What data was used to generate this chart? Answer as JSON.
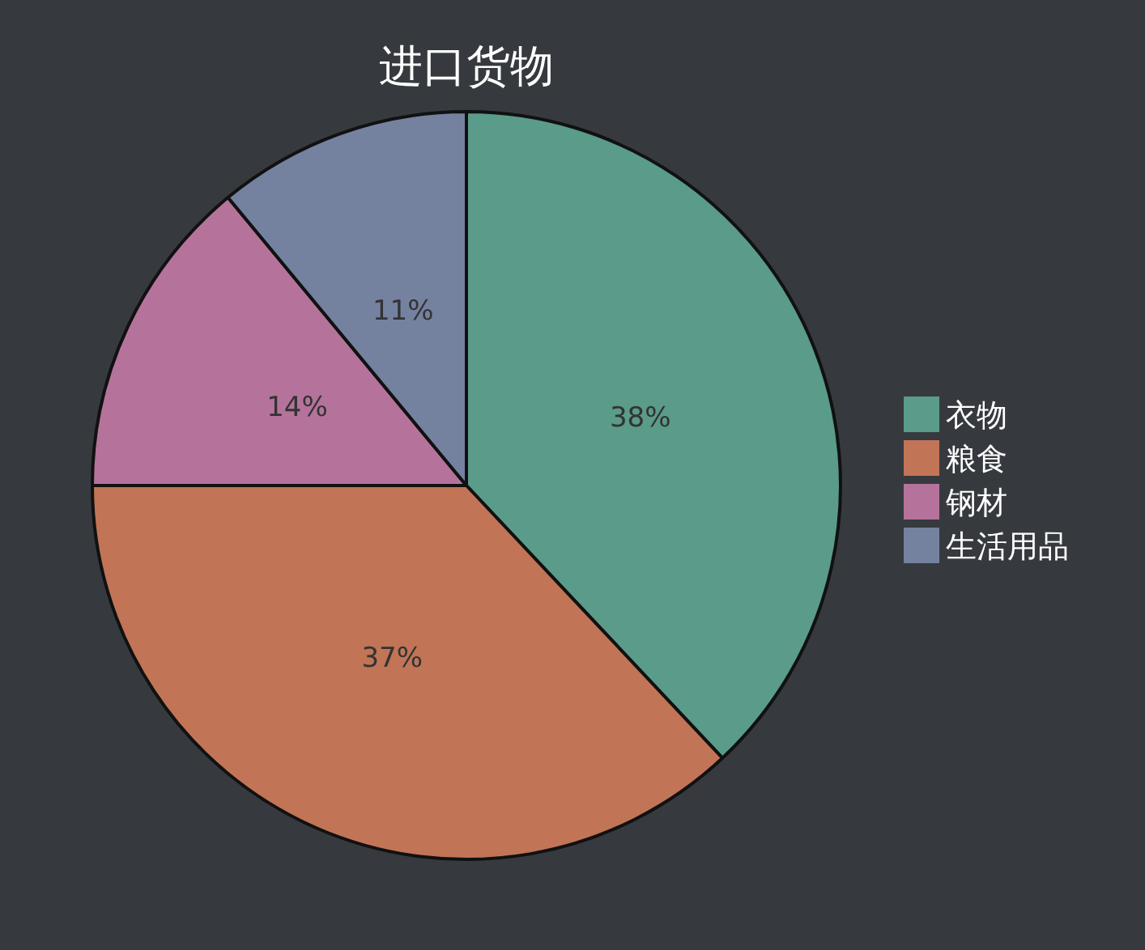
{
  "chart_data": {
    "type": "pie",
    "title": "进口货物",
    "categories": [
      "衣物",
      "粮食",
      "钢材",
      "生活用品"
    ],
    "values": [
      38,
      37,
      14,
      11
    ],
    "colors": [
      "#5a9b89",
      "#c17556",
      "#b5739c",
      "#7482a0"
    ],
    "value_labels": [
      "38%",
      "37%",
      "14%",
      "11%"
    ],
    "legend": "right"
  }
}
